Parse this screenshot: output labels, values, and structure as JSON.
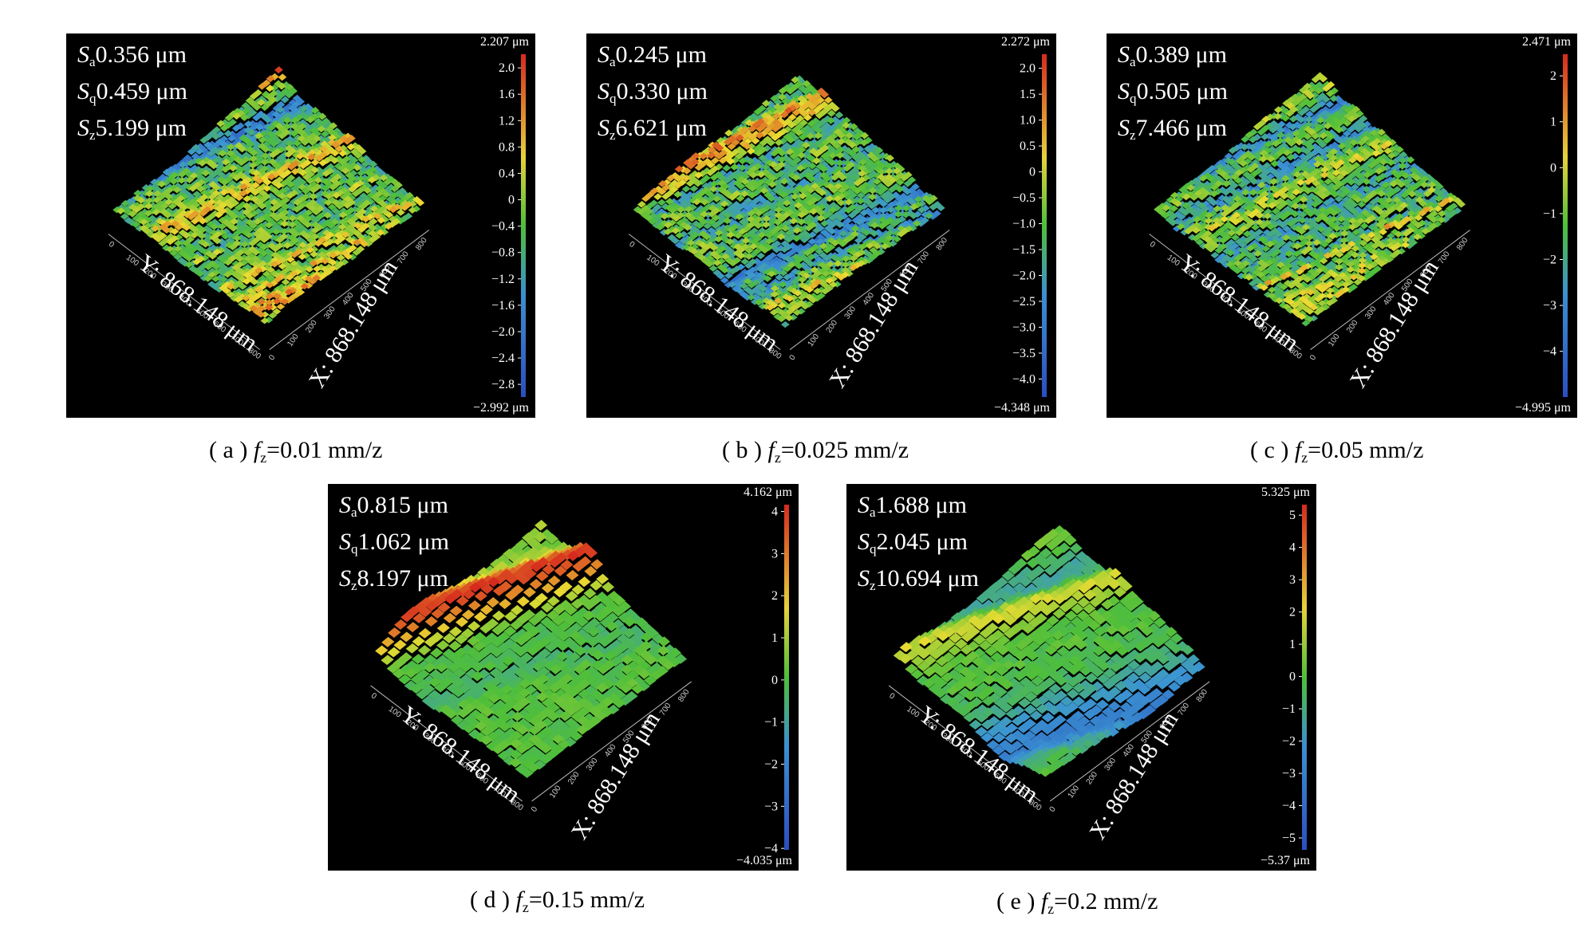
{
  "panels": [
    {
      "id": "a",
      "stats": {
        "sa": "0.356 μm",
        "sq": "0.459 μm",
        "sz": "5.199 μm"
      },
      "cb_max": "2.207 μm",
      "cb_min": "−2.992 μm",
      "ticks": [
        "2.0",
        "1.6",
        "1.2",
        "0.8",
        "0.4",
        "0",
        "−0.4",
        "−0.8",
        "−1.2",
        "−1.6",
        "−2.0",
        "−2.4",
        "−2.8"
      ],
      "tick_values": [
        2.0,
        1.6,
        1.2,
        0.8,
        0.4,
        0,
        -0.4,
        -0.8,
        -1.2,
        -1.6,
        -2.0,
        -2.4,
        -2.8
      ],
      "zmin": -2.992,
      "zmax": 2.207,
      "caption": {
        "letter": "a",
        "value": "=0.01 mm/z"
      },
      "y_axis": "Y: 868.148 μm",
      "x_axis": "X: 868.148 μm",
      "style": "fine"
    },
    {
      "id": "b",
      "stats": {
        "sa": "0.245 μm",
        "sq": "0.330 μm",
        "sz": "6.621 μm"
      },
      "cb_max": "2.272 μm",
      "cb_min": "−4.348 μm",
      "ticks": [
        "2.0",
        "1.5",
        "1.0",
        "0.5",
        "0",
        "−0.5",
        "−1.0",
        "−1.5",
        "−2.0",
        "−2.5",
        "−3.0",
        "−3.5",
        "−4.0"
      ],
      "tick_values": [
        2.0,
        1.5,
        1.0,
        0.5,
        0,
        -0.5,
        -1.0,
        -1.5,
        -2.0,
        -2.5,
        -3.0,
        -3.5,
        -4.0
      ],
      "zmin": -4.348,
      "zmax": 2.272,
      "caption": {
        "letter": "b",
        "value": "=0.025 mm/z"
      },
      "y_axis": "Y: 868.148 μm",
      "x_axis": "X: 868.148 μm",
      "style": "fine"
    },
    {
      "id": "c",
      "stats": {
        "sa": "0.389 μm",
        "sq": "0.505 μm",
        "sz": "7.466 μm"
      },
      "cb_max": "2.471 μm",
      "cb_min": "−4.995 μm",
      "ticks": [
        "2",
        "1",
        "0",
        "−1",
        "−2",
        "−3",
        "−4"
      ],
      "tick_values": [
        2,
        1,
        0,
        -1,
        -2,
        -3,
        -4
      ],
      "zmin": -4.995,
      "zmax": 2.471,
      "caption": {
        "letter": "c",
        "value": "=0.05 mm/z"
      },
      "y_axis": "Y: 868.148 μm",
      "x_axis": "X: 868.148 μm",
      "style": "fine"
    },
    {
      "id": "d",
      "stats": {
        "sa": "0.815 μm",
        "sq": "1.062 μm",
        "sz": "8.197 μm"
      },
      "cb_max": "4.162 μm",
      "cb_min": "−4.035 μm",
      "ticks": [
        "4",
        "3",
        "2",
        "1",
        "0",
        "−1",
        "−2",
        "−3",
        "−4"
      ],
      "tick_values": [
        4,
        3,
        2,
        1,
        0,
        -1,
        -2,
        -3,
        -4
      ],
      "zmin": -4.035,
      "zmax": 4.162,
      "caption": {
        "letter": "d",
        "value": "=0.15 mm/z"
      },
      "y_axis": "Y: 868.148 μm",
      "x_axis": "X: 868.148 μm",
      "style": "coarse"
    },
    {
      "id": "e",
      "stats": {
        "sa": "1.688 μm",
        "sq": "2.045 μm",
        "sz": "10.694 μm"
      },
      "cb_max": "5.325 μm",
      "cb_min": "−5.37 μm",
      "ticks": [
        "5",
        "4",
        "3",
        "2",
        "1",
        "0",
        "−1",
        "−2",
        "−3",
        "−4",
        "−5"
      ],
      "tick_values": [
        5,
        4,
        3,
        2,
        1,
        0,
        -1,
        -2,
        -3,
        -4,
        -5
      ],
      "zmin": -5.37,
      "zmax": 5.325,
      "caption": {
        "letter": "e",
        "value": "=0.2 mm/z"
      },
      "y_axis": "Y: 868.148 μm",
      "x_axis": "X: 868.148 μm",
      "style": "coarse"
    }
  ],
  "axis_ticks": [
    "0",
    "100",
    "200",
    "300",
    "400",
    "500",
    "600",
    "700",
    "800"
  ],
  "colors": {
    "background": "#000000",
    "text": "#ffffff",
    "high": "#d62a1e",
    "mid": "#4fbf3a",
    "low": "#2a4fc0"
  }
}
